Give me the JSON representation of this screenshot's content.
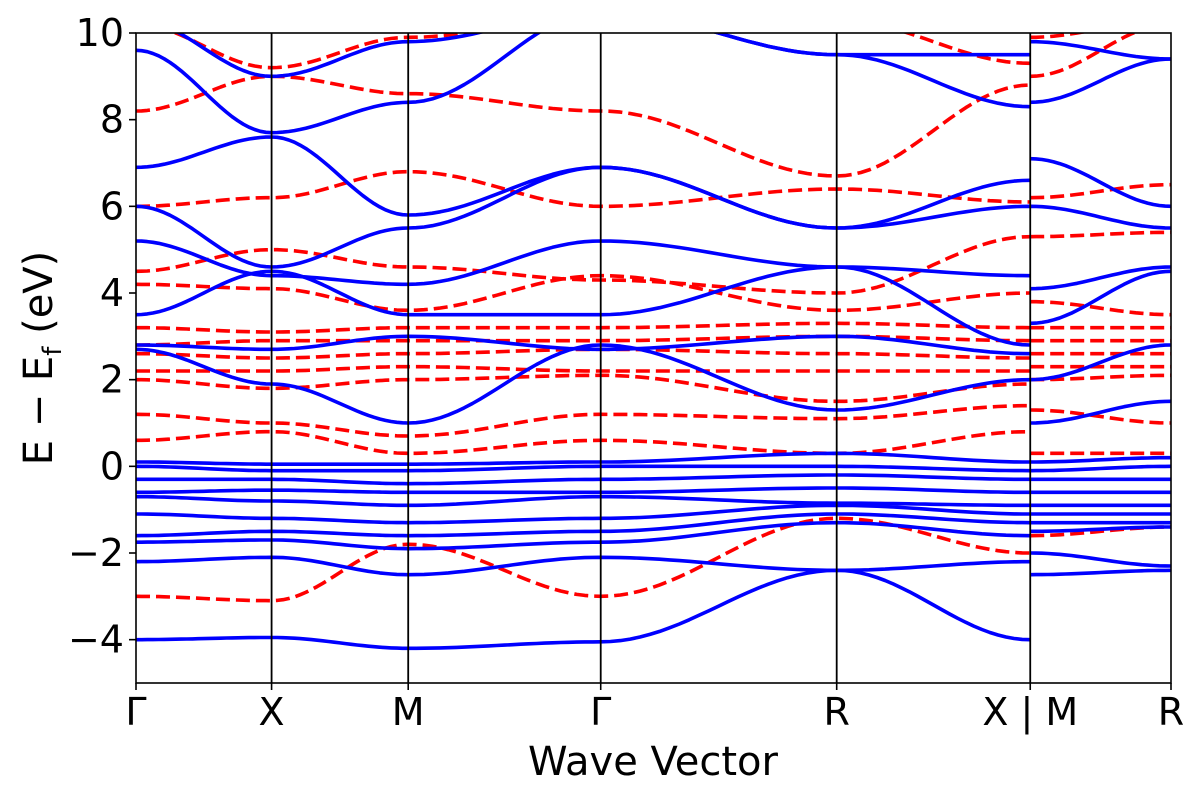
{
  "chart_data": {
    "type": "line",
    "xlabel": "Wave Vector",
    "ylabel": "E − E",
    "ylabel_sub": "f",
    "ylabel_unit": " (eV)",
    "ylim": [
      -5,
      10
    ],
    "yticks": [
      -4,
      -2,
      0,
      2,
      4,
      6,
      8,
      10
    ],
    "ytick_labels": [
      "−4",
      "−2",
      "0",
      "2",
      "4",
      "6",
      "8",
      "10"
    ],
    "xlim": [
      0,
      1
    ],
    "kpoints": [
      {
        "label": "Γ",
        "x": 0.0
      },
      {
        "label": "X",
        "x": 0.131
      },
      {
        "label": "M",
        "x": 0.263
      },
      {
        "label": "Γ",
        "x": 0.449
      },
      {
        "label": "R",
        "x": 0.677
      },
      {
        "label": "X | M",
        "x": 0.864
      },
      {
        "label": "R",
        "x": 1.0
      }
    ],
    "grid": false,
    "legend": "none",
    "series_styles": [
      {
        "color": "#0000ff",
        "dash": "solid"
      },
      {
        "color": "#ff0000",
        "dash": "dashed"
      }
    ],
    "series": [
      {
        "style": 0,
        "bands": [
          {
            "x": [
              0,
              0.131,
              0.263,
              0.449,
              0.677,
              0.864,
              0.864,
              1.0
            ],
            "y": [
              -4.0,
              -3.95,
              -4.2,
              -4.05,
              -2.4,
              -4.0,
              -2.5,
              -2.4
            ]
          },
          {
            "x": [
              0,
              0.131,
              0.263,
              0.449,
              0.677,
              0.864,
              0.864,
              1.0
            ],
            "y": [
              -2.2,
              -2.1,
              -2.5,
              -2.1,
              -2.4,
              -2.2,
              -2.0,
              -2.3
            ]
          },
          {
            "x": [
              0,
              0.131,
              0.263,
              0.449,
              0.677,
              0.864,
              0.864,
              1.0
            ],
            "y": [
              -1.75,
              -1.7,
              -1.9,
              -1.75,
              -1.3,
              -1.6,
              -1.5,
              -1.4
            ]
          },
          {
            "x": [
              0,
              0.131,
              0.263,
              0.449,
              0.677,
              0.864,
              0.864,
              1.0
            ],
            "y": [
              -1.6,
              -1.5,
              -1.6,
              -1.5,
              -1.1,
              -1.3,
              -1.3,
              -1.3
            ]
          },
          {
            "x": [
              0,
              0.131,
              0.263,
              0.449,
              0.677,
              0.864,
              0.864,
              1.0
            ],
            "y": [
              -1.1,
              -1.2,
              -1.3,
              -1.2,
              -0.9,
              -1.1,
              -1.1,
              -1.1
            ]
          },
          {
            "x": [
              0,
              0.131,
              0.263,
              0.449,
              0.677,
              0.864,
              0.864,
              1.0
            ],
            "y": [
              -0.7,
              -0.8,
              -0.9,
              -0.7,
              -0.85,
              -0.9,
              -0.9,
              -0.9
            ]
          },
          {
            "x": [
              0,
              0.131,
              0.263,
              0.449,
              0.677,
              0.864,
              0.864,
              1.0
            ],
            "y": [
              -0.6,
              -0.55,
              -0.6,
              -0.6,
              -0.5,
              -0.6,
              -0.6,
              -0.6
            ]
          },
          {
            "x": [
              0,
              0.131,
              0.263,
              0.449,
              0.677,
              0.864,
              0.864,
              1.0
            ],
            "y": [
              -0.3,
              -0.3,
              -0.4,
              -0.3,
              -0.2,
              -0.3,
              -0.3,
              -0.3
            ]
          },
          {
            "x": [
              0,
              0.131,
              0.263,
              0.449,
              0.677,
              0.864,
              0.864,
              1.0
            ],
            "y": [
              0.0,
              -0.1,
              -0.1,
              0.0,
              0.0,
              -0.1,
              -0.1,
              0.0
            ]
          },
          {
            "x": [
              0,
              0.131,
              0.263,
              0.449,
              0.677,
              0.864,
              0.864,
              1.0
            ],
            "y": [
              0.1,
              0.05,
              0.05,
              0.1,
              0.3,
              0.1,
              0.1,
              0.2
            ]
          },
          {
            "x": [
              0,
              0.131,
              0.263,
              0.449,
              0.677,
              0.864,
              0.864,
              1.0
            ],
            "y": [
              2.7,
              1.9,
              1.0,
              2.8,
              1.3,
              2.0,
              1.0,
              1.5
            ]
          },
          {
            "x": [
              0,
              0.131,
              0.263,
              0.449,
              0.677,
              0.864,
              0.864,
              1.0
            ],
            "y": [
              2.8,
              2.7,
              3.0,
              2.7,
              3.0,
              2.6,
              2.0,
              2.8
            ]
          },
          {
            "x": [
              0,
              0.131,
              0.263,
              0.449,
              0.677,
              0.864,
              0.864,
              1.0
            ],
            "y": [
              3.5,
              4.5,
              3.5,
              3.5,
              4.6,
              2.8,
              3.3,
              4.5
            ]
          },
          {
            "x": [
              0,
              0.131,
              0.263,
              0.449,
              0.677,
              0.864,
              0.864,
              1.0
            ],
            "y": [
              5.2,
              4.4,
              4.2,
              5.2,
              4.6,
              4.4,
              4.1,
              4.6
            ]
          },
          {
            "x": [
              0,
              0.131,
              0.263,
              0.449,
              0.677,
              0.864,
              0.864,
              1.0
            ],
            "y": [
              6.0,
              4.6,
              5.5,
              6.9,
              5.5,
              6.0,
              6.0,
              5.5
            ]
          },
          {
            "x": [
              0,
              0.131,
              0.263,
              0.449,
              0.677,
              0.864,
              0.864,
              1.0
            ],
            "y": [
              6.9,
              7.6,
              5.8,
              6.9,
              5.5,
              6.6,
              7.1,
              6.0
            ]
          },
          {
            "x": [
              0,
              0.131,
              0.263,
              0.449,
              0.677,
              0.864,
              0.864,
              1.0
            ],
            "y": [
              9.6,
              7.7,
              8.4,
              10.5,
              9.5,
              8.3,
              8.4,
              9.4
            ]
          },
          {
            "x": [
              0,
              0.131,
              0.263,
              0.449,
              0.677,
              0.864,
              0.864,
              1.0
            ],
            "y": [
              10.3,
              9.0,
              9.8,
              10.5,
              9.5,
              9.5,
              9.8,
              9.4
            ]
          }
        ]
      },
      {
        "style": 1,
        "bands": [
          {
            "x": [
              0,
              0.131,
              0.263,
              0.449,
              0.677,
              0.864,
              0.864,
              1.0
            ],
            "y": [
              -3.0,
              -3.1,
              -1.8,
              -3.0,
              -1.2,
              -2.0,
              -1.6,
              -1.4
            ]
          },
          {
            "x": [
              0,
              0.131,
              0.263,
              0.449,
              0.677,
              0.864,
              0.864,
              1.0
            ],
            "y": [
              0.6,
              0.8,
              0.3,
              0.6,
              0.3,
              0.8,
              0.3,
              0.3
            ]
          },
          {
            "x": [
              0,
              0.131,
              0.263,
              0.449,
              0.677,
              0.864,
              0.864,
              1.0
            ],
            "y": [
              1.2,
              1.0,
              0.7,
              1.2,
              1.1,
              1.4,
              1.3,
              1.0
            ]
          },
          {
            "x": [
              0,
              0.131,
              0.263,
              0.449,
              0.677,
              0.864,
              0.864,
              1.0
            ],
            "y": [
              2.0,
              1.8,
              2.0,
              2.1,
              1.5,
              1.9,
              2.0,
              2.1
            ]
          },
          {
            "x": [
              0,
              0.131,
              0.263,
              0.449,
              0.677,
              0.864,
              0.864,
              1.0
            ],
            "y": [
              2.2,
              2.2,
              2.3,
              2.2,
              2.2,
              2.2,
              2.3,
              2.3
            ]
          },
          {
            "x": [
              0,
              0.131,
              0.263,
              0.449,
              0.677,
              0.864,
              0.864,
              1.0
            ],
            "y": [
              2.6,
              2.5,
              2.6,
              2.7,
              2.6,
              2.5,
              2.6,
              2.6
            ]
          },
          {
            "x": [
              0,
              0.131,
              0.263,
              0.449,
              0.677,
              0.864,
              0.864,
              1.0
            ],
            "y": [
              2.8,
              2.9,
              2.9,
              2.9,
              3.0,
              2.9,
              2.9,
              2.9
            ]
          },
          {
            "x": [
              0,
              0.131,
              0.263,
              0.449,
              0.677,
              0.864,
              0.864,
              1.0
            ],
            "y": [
              3.2,
              3.1,
              3.2,
              3.2,
              3.3,
              3.2,
              3.2,
              3.2
            ]
          },
          {
            "x": [
              0,
              0.131,
              0.263,
              0.449,
              0.677,
              0.864,
              0.864,
              1.0
            ],
            "y": [
              4.2,
              4.1,
              3.6,
              4.4,
              3.6,
              4.0,
              3.8,
              3.5
            ]
          },
          {
            "x": [
              0,
              0.131,
              0.263,
              0.449,
              0.677,
              0.864,
              0.864,
              1.0
            ],
            "y": [
              4.5,
              5.0,
              4.6,
              4.3,
              4.0,
              5.3,
              5.3,
              5.4
            ]
          },
          {
            "x": [
              0,
              0.131,
              0.263,
              0.449,
              0.677,
              0.864,
              0.864,
              1.0
            ],
            "y": [
              6.0,
              6.2,
              6.8,
              6.0,
              6.4,
              6.1,
              6.2,
              6.5
            ]
          },
          {
            "x": [
              0,
              0.131,
              0.263,
              0.449,
              0.677,
              0.864,
              0.864,
              1.0
            ],
            "y": [
              8.2,
              9.0,
              8.6,
              8.2,
              6.7,
              8.8,
              9.0,
              10.2
            ]
          },
          {
            "x": [
              0,
              0.131,
              0.263,
              0.449,
              0.677,
              0.864,
              0.864,
              1.0
            ],
            "y": [
              10.2,
              9.2,
              9.9,
              10.4,
              10.3,
              9.3,
              9.9,
              10.3
            ]
          }
        ]
      }
    ]
  }
}
